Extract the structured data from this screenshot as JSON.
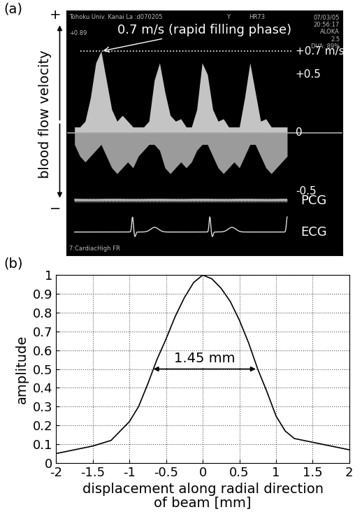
{
  "panel_labels": [
    "(a)",
    "(b)"
  ],
  "doppler": {
    "axis_label": "blood flow velocity",
    "direction_marks": [
      "+",
      "−"
    ],
    "annotation": {
      "text": "0.7 m/s (rapid filling phase)",
      "value": 0.7
    },
    "ylim": [
      -1.05,
      1.05
    ],
    "velocity_ticks": [
      {
        "value": 0.7,
        "label": "+0.7 m/s"
      },
      {
        "value": 0.5,
        "label": "+0.5"
      },
      0,
      {
        "value": -0.5,
        "label": "-0.5"
      }
    ],
    "trace_labels": [
      {
        "label": "PCG",
        "value": -0.58
      },
      {
        "label": "ECG",
        "value": -0.85
      }
    ],
    "screen_texts": [
      "Tohoku Univ. Kanai La :d070205",
      "Y",
      "HR73",
      "07/03/05",
      "20:56:17",
      "ALOKA",
      "2.5",
      "DVA: 89%",
      "+0.89",
      "7:CardiacHigh FR"
    ],
    "spectrum": {
      "positive": [
        0.05,
        0.05,
        0.1,
        0.3,
        0.6,
        0.7,
        0.45,
        0.2,
        0.1,
        0.15,
        0.1,
        0.05,
        0.05,
        0.05,
        0.1,
        0.45,
        0.6,
        0.35,
        0.15,
        0.1,
        0.12,
        0.05,
        0.05,
        0.2,
        0.6,
        0.5,
        0.2,
        0.1,
        0.12,
        0.05,
        0.05,
        0.05,
        0.3,
        0.6,
        0.35,
        0.1,
        0.12,
        0.05,
        0.05,
        0.05,
        0.05
      ],
      "negative": [
        -0.1,
        -0.2,
        -0.25,
        -0.2,
        -0.15,
        -0.1,
        -0.2,
        -0.3,
        -0.35,
        -0.3,
        -0.25,
        -0.3,
        -0.2,
        -0.15,
        -0.1,
        -0.1,
        -0.15,
        -0.3,
        -0.35,
        -0.3,
        -0.25,
        -0.3,
        -0.25,
        -0.15,
        -0.1,
        -0.1,
        -0.2,
        -0.3,
        -0.35,
        -0.3,
        -0.25,
        -0.3,
        -0.2,
        -0.1,
        -0.1,
        -0.2,
        -0.3,
        -0.35,
        -0.3,
        -0.25,
        -0.2
      ]
    }
  },
  "chart_data": {
    "type": "line",
    "x": [
      -2,
      -1.75,
      -1.5,
      -1.25,
      -1,
      -0.875,
      -0.75,
      -0.625,
      -0.5,
      -0.375,
      -0.25,
      -0.125,
      0,
      0.125,
      0.25,
      0.375,
      0.5,
      0.625,
      0.75,
      0.875,
      1,
      1.125,
      1.25,
      1.5,
      1.75,
      2
    ],
    "values": [
      0.05,
      0.07,
      0.09,
      0.12,
      0.22,
      0.3,
      0.42,
      0.55,
      0.66,
      0.78,
      0.88,
      0.96,
      1.0,
      0.98,
      0.93,
      0.86,
      0.76,
      0.64,
      0.5,
      0.38,
      0.25,
      0.17,
      0.13,
      0.11,
      0.09,
      0.07
    ],
    "color": "#000000",
    "x_label": "displacement along radial direction\nof beam [mm]",
    "y_label": "amplitude",
    "xlim": [
      -2,
      2
    ],
    "xticks": [
      -2,
      -1.5,
      -1,
      -0.5,
      0,
      0.5,
      1,
      1.5,
      2
    ],
    "ylim": [
      0,
      1
    ],
    "yticks": [
      0,
      0.1,
      0.2,
      0.3,
      0.4,
      0.5,
      0.6,
      0.7,
      0.8,
      0.9,
      1
    ],
    "grid": true,
    "annotation": {
      "text": "1.45 mm",
      "from": -0.7,
      "to": 0.75,
      "level": 0.5
    }
  }
}
